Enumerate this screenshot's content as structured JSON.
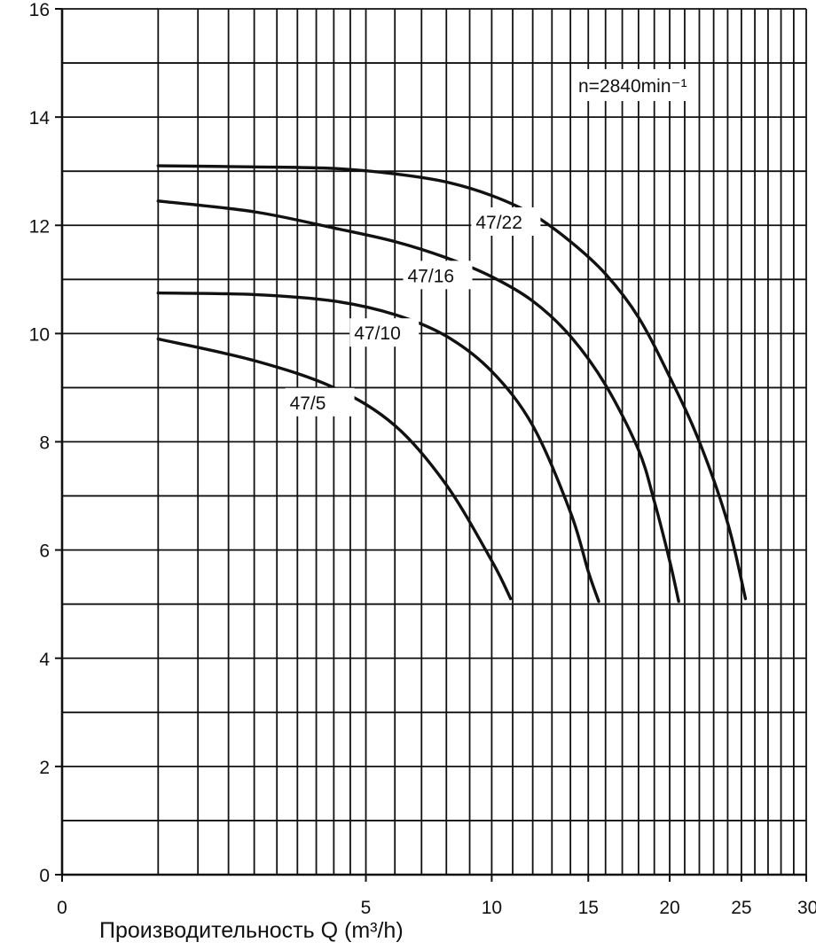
{
  "chart_data": {
    "type": "line",
    "title": "",
    "xlabel": "Производительность Q (m³/h)",
    "ylabel": "",
    "annotation": "n=2840min⁻¹",
    "xlim": [
      0,
      30
    ],
    "ylim": [
      0,
      16
    ],
    "x_ticks": [
      "0",
      "5",
      "10",
      "15",
      "20",
      "25",
      "30"
    ],
    "y_ticks": [
      "0",
      "2",
      "4",
      "6",
      "8",
      "10",
      "12",
      "14",
      "16"
    ],
    "grid": true,
    "axis_color": "#111111",
    "line_color": "#111111",
    "series": [
      {
        "name": "47/22",
        "x": [
          0.5,
          2,
          4,
          6,
          8,
          10,
          12,
          14,
          16,
          18,
          20,
          22,
          24,
          25.3
        ],
        "y": [
          13.1,
          13.08,
          13.05,
          12.95,
          12.8,
          12.55,
          12.2,
          11.7,
          11.1,
          10.3,
          9.2,
          8.0,
          6.5,
          5.1
        ]
      },
      {
        "name": "47/16",
        "x": [
          0.5,
          2,
          4,
          6,
          8,
          10,
          12,
          14,
          16,
          18,
          19,
          20,
          20.6
        ],
        "y": [
          12.45,
          12.25,
          11.95,
          11.7,
          11.4,
          11.05,
          10.6,
          9.95,
          9.05,
          7.85,
          6.9,
          5.8,
          5.05
        ]
      },
      {
        "name": "47/10",
        "x": [
          0.5,
          2,
          4,
          6,
          8,
          10,
          12,
          14,
          15,
          15.6
        ],
        "y": [
          10.75,
          10.72,
          10.6,
          10.35,
          9.95,
          9.3,
          8.3,
          6.7,
          5.6,
          5.05
        ]
      },
      {
        "name": "47/5",
        "x": [
          0.5,
          2,
          4,
          6,
          8,
          10,
          10.9
        ],
        "y": [
          9.9,
          9.5,
          9.0,
          8.3,
          7.2,
          5.8,
          5.1
        ]
      }
    ]
  }
}
